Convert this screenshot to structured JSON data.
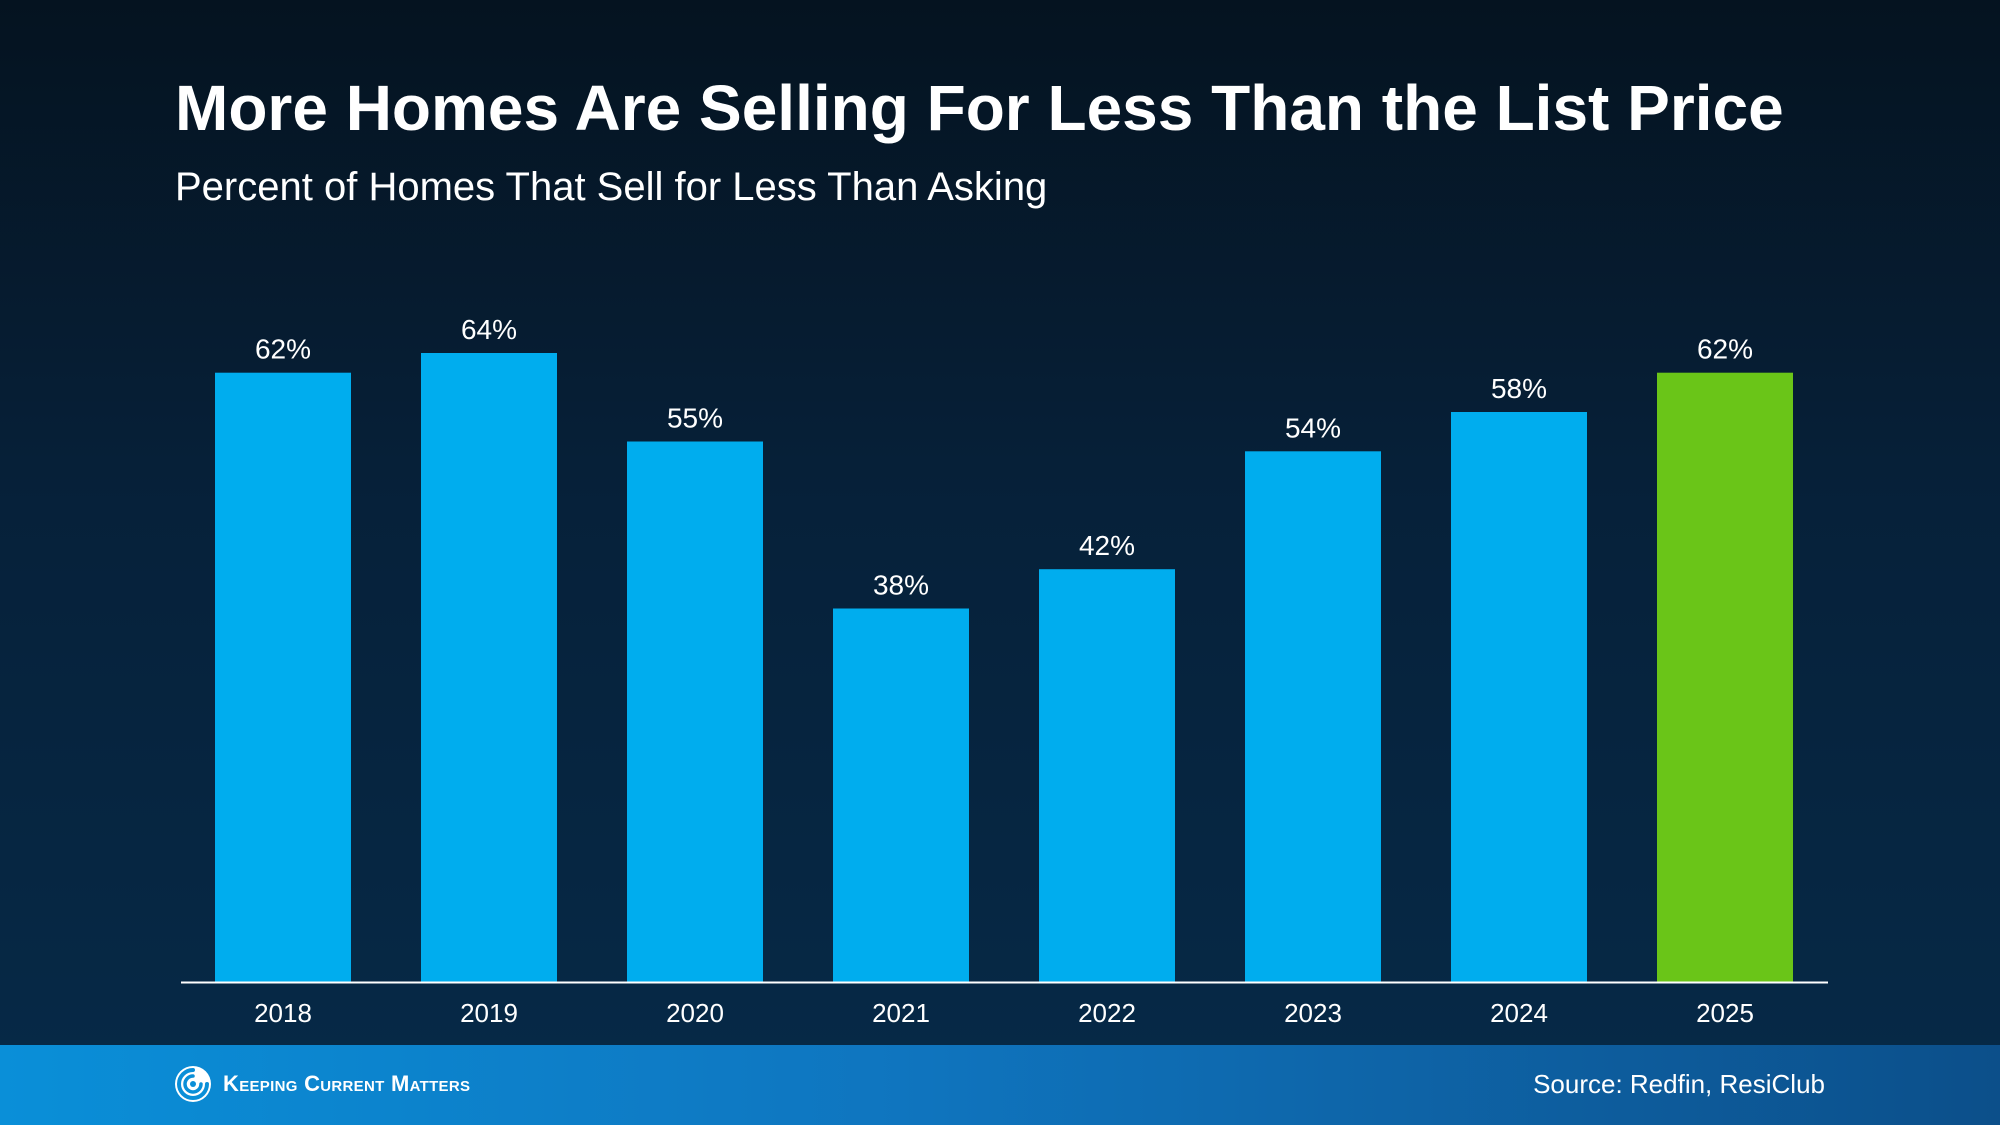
{
  "header": {
    "title": "More Homes Are Selling For Less Than the List Price",
    "subtitle": "Percent of Homes That Sell for Less Than Asking"
  },
  "footer": {
    "brand_name": "Keeping Current Matters",
    "brand_icon": "kcm-swirl-logo-icon",
    "source": "Source: Redfin, ResiClub"
  },
  "colors": {
    "bar_default": "#00adee",
    "bar_highlight": "#6ac518",
    "baseline": "#ffffff"
  },
  "chart_data": {
    "type": "bar",
    "title": "More Homes Are Selling For Less Than the List Price",
    "subtitle": "Percent of Homes That Sell for Less Than Asking",
    "categories": [
      "2018",
      "2019",
      "2020",
      "2021",
      "2022",
      "2023",
      "2024",
      "2025"
    ],
    "values": [
      62,
      64,
      55,
      38,
      42,
      54,
      58,
      62
    ],
    "value_labels": [
      "62%",
      "64%",
      "55%",
      "38%",
      "42%",
      "54%",
      "58%",
      "62%"
    ],
    "highlight_index": 7,
    "ylim": [
      0,
      64
    ],
    "grid": false,
    "legend": "none"
  }
}
